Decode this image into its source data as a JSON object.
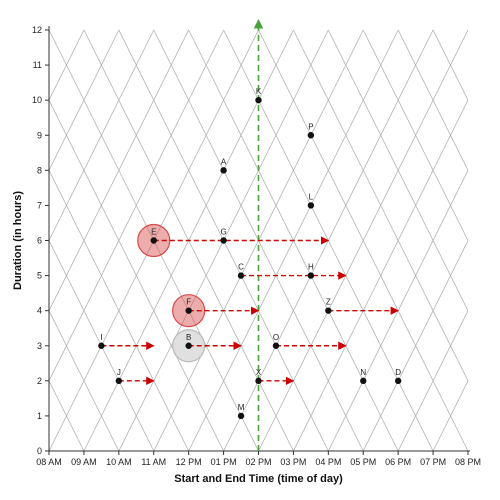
{
  "chart_data": {
    "type": "scatter",
    "title": "",
    "xlabel": "Start and End Time (time of day)",
    "ylabel": "Duration (in hours)",
    "x_unit": "hour of day (24h)",
    "xlim": [
      8,
      20
    ],
    "ylim": [
      0,
      12
    ],
    "x_tick_labels": [
      "08 AM",
      "09 AM",
      "10 AM",
      "11 AM",
      "12 PM",
      "01 PM",
      "02 PM",
      "03 PM",
      "04 PM",
      "05 PM",
      "06 PM",
      "07 PM",
      "08 PM"
    ],
    "y_ticks": [
      0,
      1,
      2,
      3,
      4,
      5,
      6,
      7,
      8,
      9,
      10,
      11,
      12
    ],
    "grid": "triangular lattice",
    "reference_line": {
      "x": 14,
      "color": "#4aa33a",
      "style": "dashed",
      "arrow": "up"
    },
    "points": [
      {
        "label": "K",
        "x": 14.0,
        "y": 10
      },
      {
        "label": "P",
        "x": 15.5,
        "y": 9
      },
      {
        "label": "A",
        "x": 13.0,
        "y": 8
      },
      {
        "label": "L",
        "x": 15.5,
        "y": 7
      },
      {
        "label": "E",
        "x": 11.0,
        "y": 6
      },
      {
        "label": "G",
        "x": 13.0,
        "y": 6
      },
      {
        "label": "C",
        "x": 13.5,
        "y": 5
      },
      {
        "label": "H",
        "x": 15.5,
        "y": 5
      },
      {
        "label": "F",
        "x": 12.0,
        "y": 4
      },
      {
        "label": "Z",
        "x": 16.0,
        "y": 4
      },
      {
        "label": "I",
        "x": 9.5,
        "y": 3
      },
      {
        "label": "B",
        "x": 12.0,
        "y": 3
      },
      {
        "label": "O",
        "x": 14.5,
        "y": 3
      },
      {
        "label": "J",
        "x": 10.0,
        "y": 2
      },
      {
        "label": "X",
        "x": 14.0,
        "y": 2
      },
      {
        "label": "N",
        "x": 17.0,
        "y": 2
      },
      {
        "label": "D",
        "x": 18.0,
        "y": 2
      },
      {
        "label": "M",
        "x": 13.5,
        "y": 1
      }
    ],
    "highlights": [
      {
        "label": "E",
        "color": "#d94a4a"
      },
      {
        "label": "F",
        "color": "#d94a4a"
      },
      {
        "label": "B",
        "color": "#bbbbbb"
      }
    ],
    "arrows": [
      {
        "y": 6,
        "x_start": 11.0,
        "x_end": 16.0
      },
      {
        "y": 5,
        "x_start": 13.5,
        "x_end": 16.5
      },
      {
        "y": 4,
        "x_start": 12.0,
        "x_end": 14.0
      },
      {
        "y": 4,
        "x_start": 16.0,
        "x_end": 18.0
      },
      {
        "y": 3,
        "x_start": 9.5,
        "x_end": 11.0
      },
      {
        "y": 3,
        "x_start": 12.0,
        "x_end": 13.5
      },
      {
        "y": 3,
        "x_start": 14.5,
        "x_end": 16.5
      },
      {
        "y": 2,
        "x_start": 10.0,
        "x_end": 11.0
      },
      {
        "y": 2,
        "x_start": 14.0,
        "x_end": 15.0
      }
    ],
    "arrow_color": "#cc0000"
  }
}
